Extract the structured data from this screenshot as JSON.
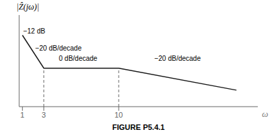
{
  "chart_data": {
    "type": "line",
    "title": "FIGURE P5.4.1",
    "y_label": "|Ẑ(jω)|",
    "x_label": "ω",
    "x": [
      1,
      3,
      10,
      21
    ],
    "values": [
      0.78,
      0.42,
      0.42,
      0.18
    ],
    "color": "#1a1a1a",
    "xlim": [
      0.7,
      23.0
    ],
    "ylim": [
      0.0,
      1.0
    ],
    "xticks": [
      1,
      3,
      10
    ],
    "tick_labels": "x",
    "vertical_lines": {
      "x": [
        3,
        10
      ],
      "values": [
        0.42,
        0.42
      ],
      "line_style": "dashed"
    },
    "annotations": [
      {
        "text": "−12 dB",
        "x": 1.08,
        "y": 0.8
      },
      {
        "text": "−20 dB/decade",
        "x": 2.2,
        "y": 0.64
      },
      {
        "text": "0 dB/decade",
        "x": 6.2,
        "y": 0.5
      },
      {
        "text": "−20 dB/decade",
        "x": 15.5,
        "y": 0.5
      }
    ]
  }
}
